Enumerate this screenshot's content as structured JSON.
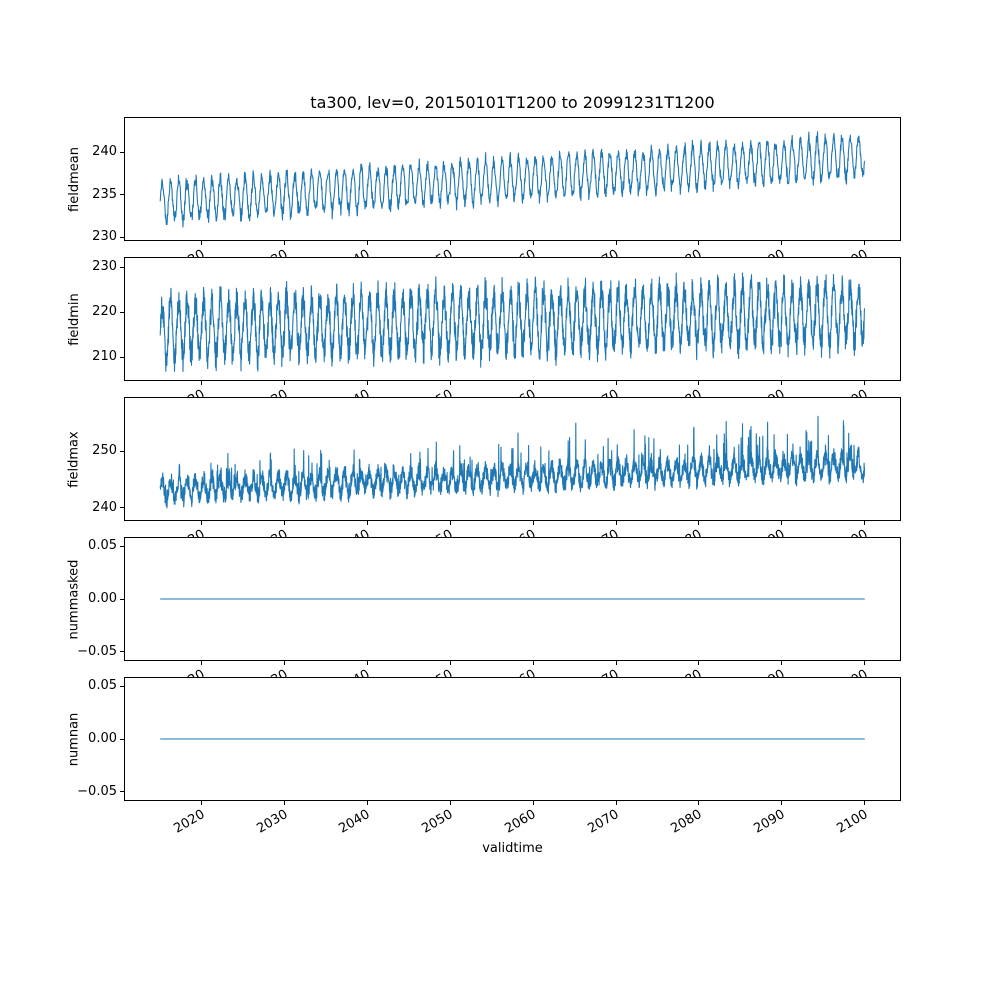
{
  "chart_data": {
    "type": "line",
    "title": "ta300, lev=0, 20150101T1200 to 20991231T1200",
    "xlabel": "validtime",
    "line_color": "#1f77b4",
    "grid": false,
    "legend": "none",
    "x_range": [
      2015,
      2100
    ],
    "xlim": [
      2010.75,
      2104.25
    ],
    "xticks": [
      2020,
      2030,
      2040,
      2050,
      2060,
      2070,
      2080,
      2090,
      2100
    ],
    "xtick_labels": [
      "2020",
      "2030",
      "2040",
      "2050",
      "2060",
      "2070",
      "2080",
      "2090",
      "2100"
    ],
    "subplots": [
      {
        "ylabel": "fieldmean",
        "ylim": [
          229.7,
          244.0
        ],
        "yticks": [
          230,
          235,
          240
        ],
        "ytick_labels": [
          "230",
          "235",
          "240"
        ],
        "synthesis": {
          "kind": "seasonal",
          "seed": 11,
          "points_per_year": 24,
          "base_start": 234.2,
          "base_end": 239.5,
          "seasonal_amplitude": 2.3,
          "noise_amplitude": 0.6,
          "min": 230.4,
          "max": 243.4
        }
      },
      {
        "ylabel": "fieldmin",
        "ylim": [
          204.9,
          232.1
        ],
        "yticks": [
          210,
          220,
          230
        ],
        "ytick_labels": [
          "210",
          "220",
          "230"
        ],
        "synthesis": {
          "kind": "seasonal",
          "seed": 22,
          "points_per_year": 36,
          "base_start": 216.3,
          "base_end": 219.8,
          "seasonal_amplitude": 6.3,
          "noise_amplitude": 2.8,
          "dip_prob": 0.02,
          "dip_size": 3.5,
          "min": 206.3,
          "max": 230.8
        }
      },
      {
        "ylabel": "fieldmax",
        "ylim": [
          237.8,
          259.5
        ],
        "yticks": [
          240,
          250
        ],
        "ytick_labels": [
          "240",
          "250"
        ],
        "synthesis": {
          "kind": "seasonal",
          "seed": 33,
          "points_per_year": 36,
          "base_start": 243.2,
          "base_end": 247.6,
          "seasonal_amplitude": 1.7,
          "noise_amplitude": 1.5,
          "spike_prob": 0.05,
          "spike_min": 1.5,
          "spike_max": 8.5,
          "min": 238.9,
          "max": 258.6
        }
      },
      {
        "ylabel": "nummasked",
        "ylim": [
          -0.058,
          0.058
        ],
        "yticks": [
          -0.05,
          0.0,
          0.05
        ],
        "ytick_labels": [
          "−0.05",
          "0.00",
          "0.05"
        ],
        "synthesis": {
          "kind": "constant",
          "value": 0
        }
      },
      {
        "ylabel": "numnan",
        "ylim": [
          -0.058,
          0.058
        ],
        "yticks": [
          -0.05,
          0.0,
          0.05
        ],
        "ytick_labels": [
          "−0.05",
          "0.00",
          "0.05"
        ],
        "synthesis": {
          "kind": "constant",
          "value": 0
        }
      }
    ]
  }
}
